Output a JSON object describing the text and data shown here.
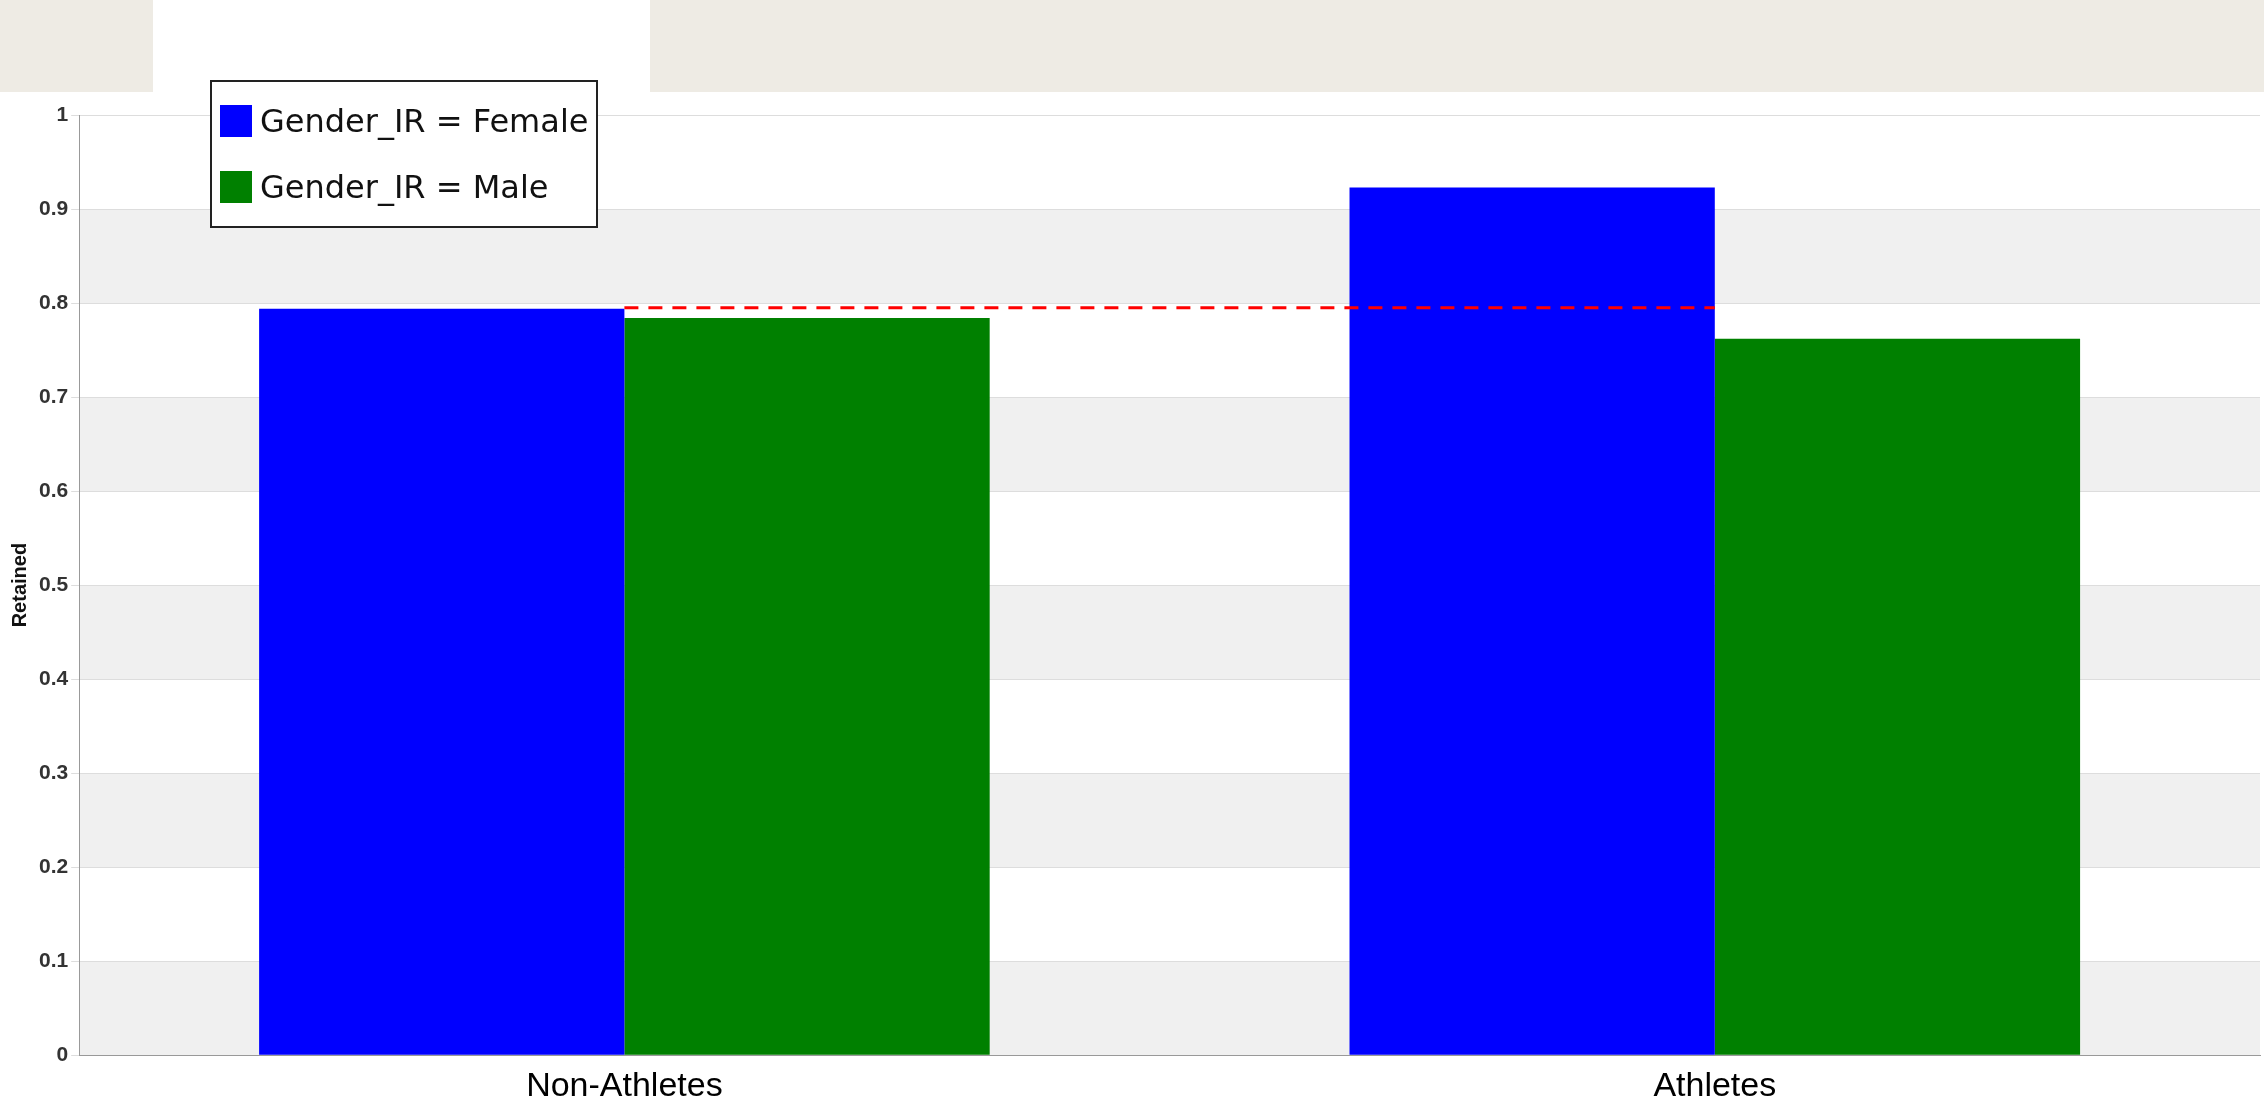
{
  "chart_data": {
    "type": "bar",
    "ylabel": "Retained",
    "categories": [
      "Non-Athletes",
      "Athletes"
    ],
    "series": [
      {
        "name": "Gender_IR = Female",
        "color": "#0000ff",
        "values": [
          0.794,
          0.923
        ]
      },
      {
        "name": "Gender_IR = Male",
        "color": "#008000",
        "values": [
          0.784,
          0.762
        ]
      }
    ],
    "ylim": [
      0,
      1
    ],
    "yticks": [
      0,
      0.1,
      0.2,
      0.3,
      0.4,
      0.5,
      0.6,
      0.7,
      0.8,
      0.9,
      1
    ],
    "grid": "y",
    "legend": "top left",
    "ref_lines": [
      {
        "axis": "y",
        "value": 0.795,
        "color": "#ff0000",
        "line_style": "dashed"
      }
    ]
  }
}
